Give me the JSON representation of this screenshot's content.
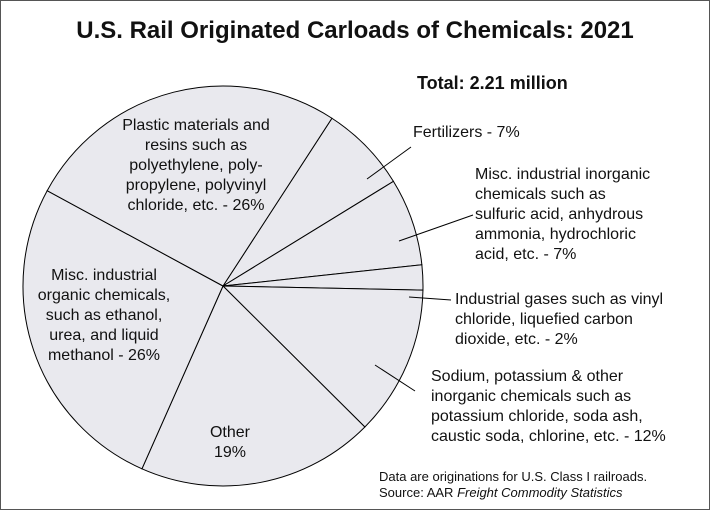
{
  "chart_data": {
    "type": "pie",
    "title": "U.S. Rail Originated Carloads of Chemicals: 2021",
    "subtitle": "Total: 2.21 million",
    "categories": [
      "Fertilizers - 7%",
      "Misc. industrial inorganic\nchemicals such as\nsulfuric acid, anhydrous\nammonia, hydrochloric\nacid, etc. - 7%",
      "Industrial gases such as vinyl\nchloride, liquefied carbon\ndioxide, etc. - 2%",
      "Sodium, potassium & other\ninorganic chemicals such as\npotassium chloride, soda ash,\ncaustic soda, chlorine, etc. - 12%",
      "Other\n19%",
      "Misc. industrial\norganic chemicals,\nsuch as ethanol,\nurea, and liquid\nmethanol - 26%",
      "Plastic materials and\nresins such as\npolyethylene, poly-\npropylene, polyvinyl\nchloride, etc. - 26%"
    ],
    "values": [
      7,
      7,
      2,
      12,
      19,
      26,
      26
    ],
    "color": "#e9e9ee",
    "note": "Data are originations for U.S. Class I railroads.",
    "source": {
      "label": "Source: AAR",
      "publication": "Freight Commodity Statistics"
    }
  }
}
